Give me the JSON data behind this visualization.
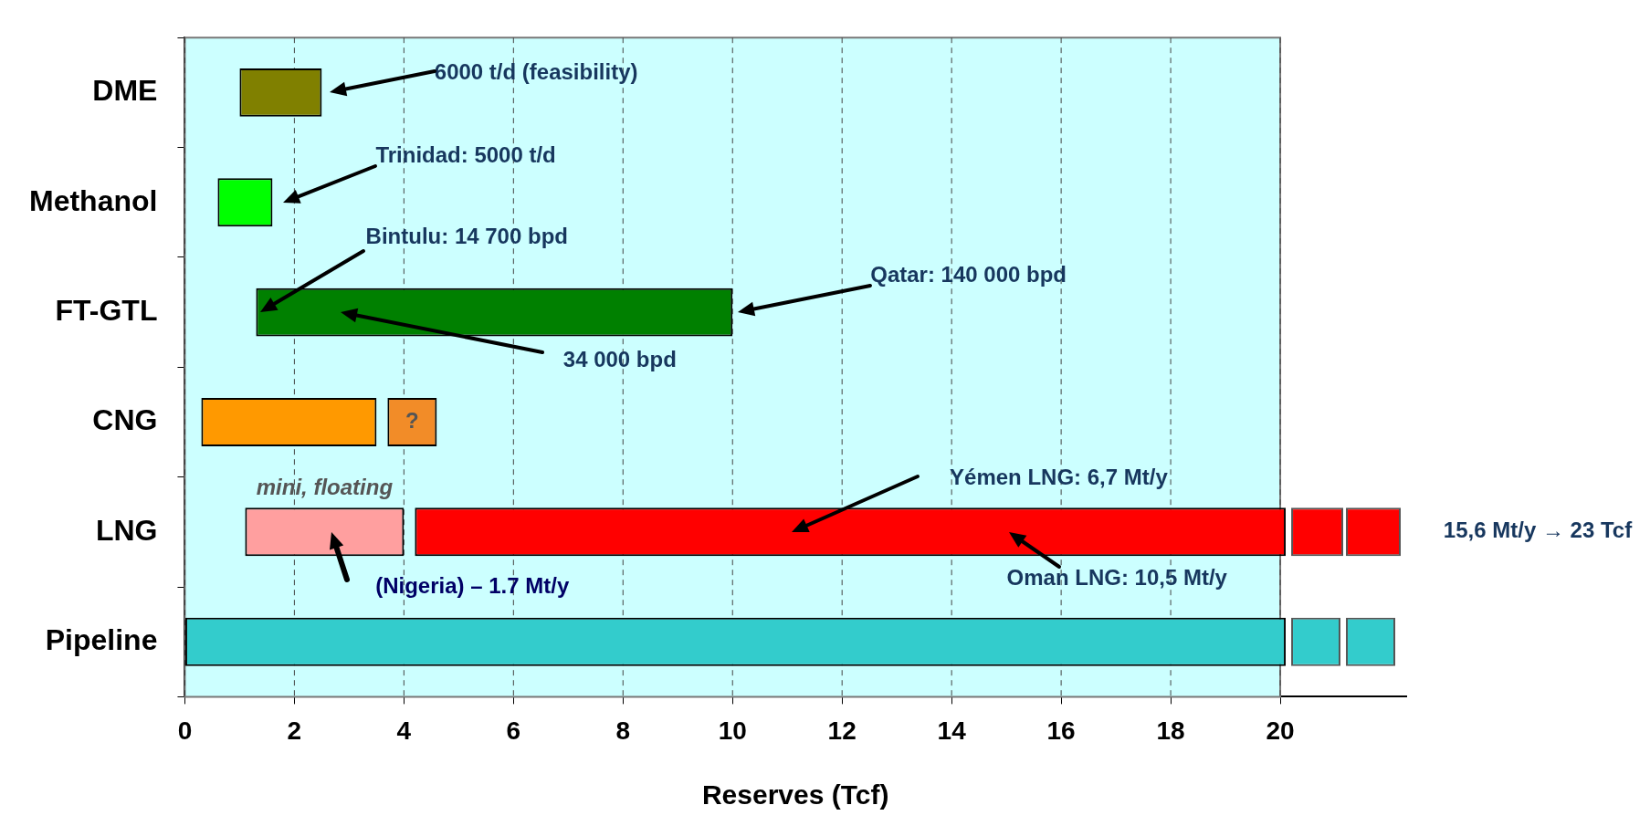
{
  "chart_data": {
    "type": "bar",
    "orientation": "horizontal",
    "xlabel": "Reserves (Tcf)",
    "categories": [
      "DME",
      "Methanol",
      "FT-GTL",
      "CNG",
      "LNG",
      "Pipeline"
    ],
    "series": [
      {
        "values": [
          1.5,
          1.0,
          8.7,
          3.2,
          15.9,
          20.1
        ],
        "base": [
          1.0,
          0.6,
          1.3,
          0.3,
          4.2,
          0
        ],
        "colors": [
          "#808000",
          "#00ff00",
          "#008000",
          "#ff9900",
          "#ff0000",
          "#33cccc"
        ]
      },
      {
        "values": [
          null,
          null,
          null,
          0.9,
          2.9,
          null
        ],
        "base": [
          null,
          null,
          null,
          3.7,
          1.1,
          null
        ],
        "colors": [
          null,
          null,
          null,
          "#f28c28",
          "#ff9f9f",
          null
        ]
      },
      {
        "values": [
          null,
          null,
          null,
          null,
          0.95,
          0.9
        ],
        "base": [
          null,
          null,
          null,
          null,
          20.2,
          20.2
        ],
        "colors": [
          null,
          null,
          null,
          null,
          "#ff0000",
          "#33cccc"
        ]
      },
      {
        "values": [
          null,
          null,
          null,
          null,
          1.0,
          0.9
        ],
        "base": [
          null,
          null,
          null,
          null,
          21.2,
          21.2
        ],
        "colors": [
          null,
          null,
          null,
          null,
          "#ff0000",
          "#33cccc"
        ]
      }
    ],
    "xlim": [
      0,
      22.3
    ],
    "xticks": [
      0,
      2,
      4,
      6,
      8,
      10,
      12,
      14,
      16,
      18,
      20
    ],
    "grid": "x",
    "legend": false,
    "bands": [
      {
        "axis": "x",
        "from": 0,
        "to": 20,
        "color": "#ccffff"
      }
    ],
    "annotations": [
      "6000 t/d (feasibility)",
      "Trinidad: 5000 t/d",
      "Bintulu: 14 700 bpd",
      "Qatar: 140 000 bpd",
      "34 000 bpd",
      "Yémen LNG: 6,7 Mt/y",
      "Oman LNG: 10,5 Mt/y",
      "(Nigeria) – 1.7 Mt/y",
      "15,6 Mt/y → 23 Tcf",
      "mini, floating",
      "?"
    ]
  }
}
